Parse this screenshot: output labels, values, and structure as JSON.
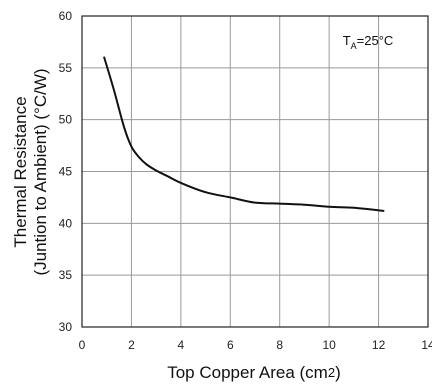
{
  "chart_data": {
    "type": "line",
    "title": "",
    "xlabel": "Top Copper Area (cm",
    "xlabel_superscript": "2",
    "xlabel_suffix": ")",
    "ylabel_line1": "Thermal Resistance",
    "ylabel_line2": "(Juntion to Ambient) (°C/W)",
    "xlim": [
      0,
      14
    ],
    "ylim": [
      30,
      60
    ],
    "x_ticks": [
      0,
      2,
      4,
      6,
      8,
      10,
      12,
      14
    ],
    "y_ticks": [
      30,
      35,
      40,
      45,
      50,
      55,
      60
    ],
    "grid": true,
    "annotation": {
      "main": "T",
      "sub": "A",
      "rest": "=25°C"
    },
    "series": [
      {
        "x": [
          0.9,
          1.3,
          1.7,
          2.0,
          2.3,
          2.6,
          3.0,
          3.5,
          4.0,
          5.0,
          6.0,
          7.0,
          8.0,
          9.0,
          10.0,
          11.0,
          12.2
        ],
        "y": [
          56.0,
          52.8,
          49.3,
          47.4,
          46.4,
          45.7,
          45.1,
          44.5,
          43.9,
          43.0,
          42.5,
          42.0,
          41.9,
          41.8,
          41.6,
          41.5,
          41.2
        ]
      }
    ],
    "colors": {
      "line": "#111111",
      "grid": "#9a9a9a",
      "frame": "#222222"
    }
  }
}
